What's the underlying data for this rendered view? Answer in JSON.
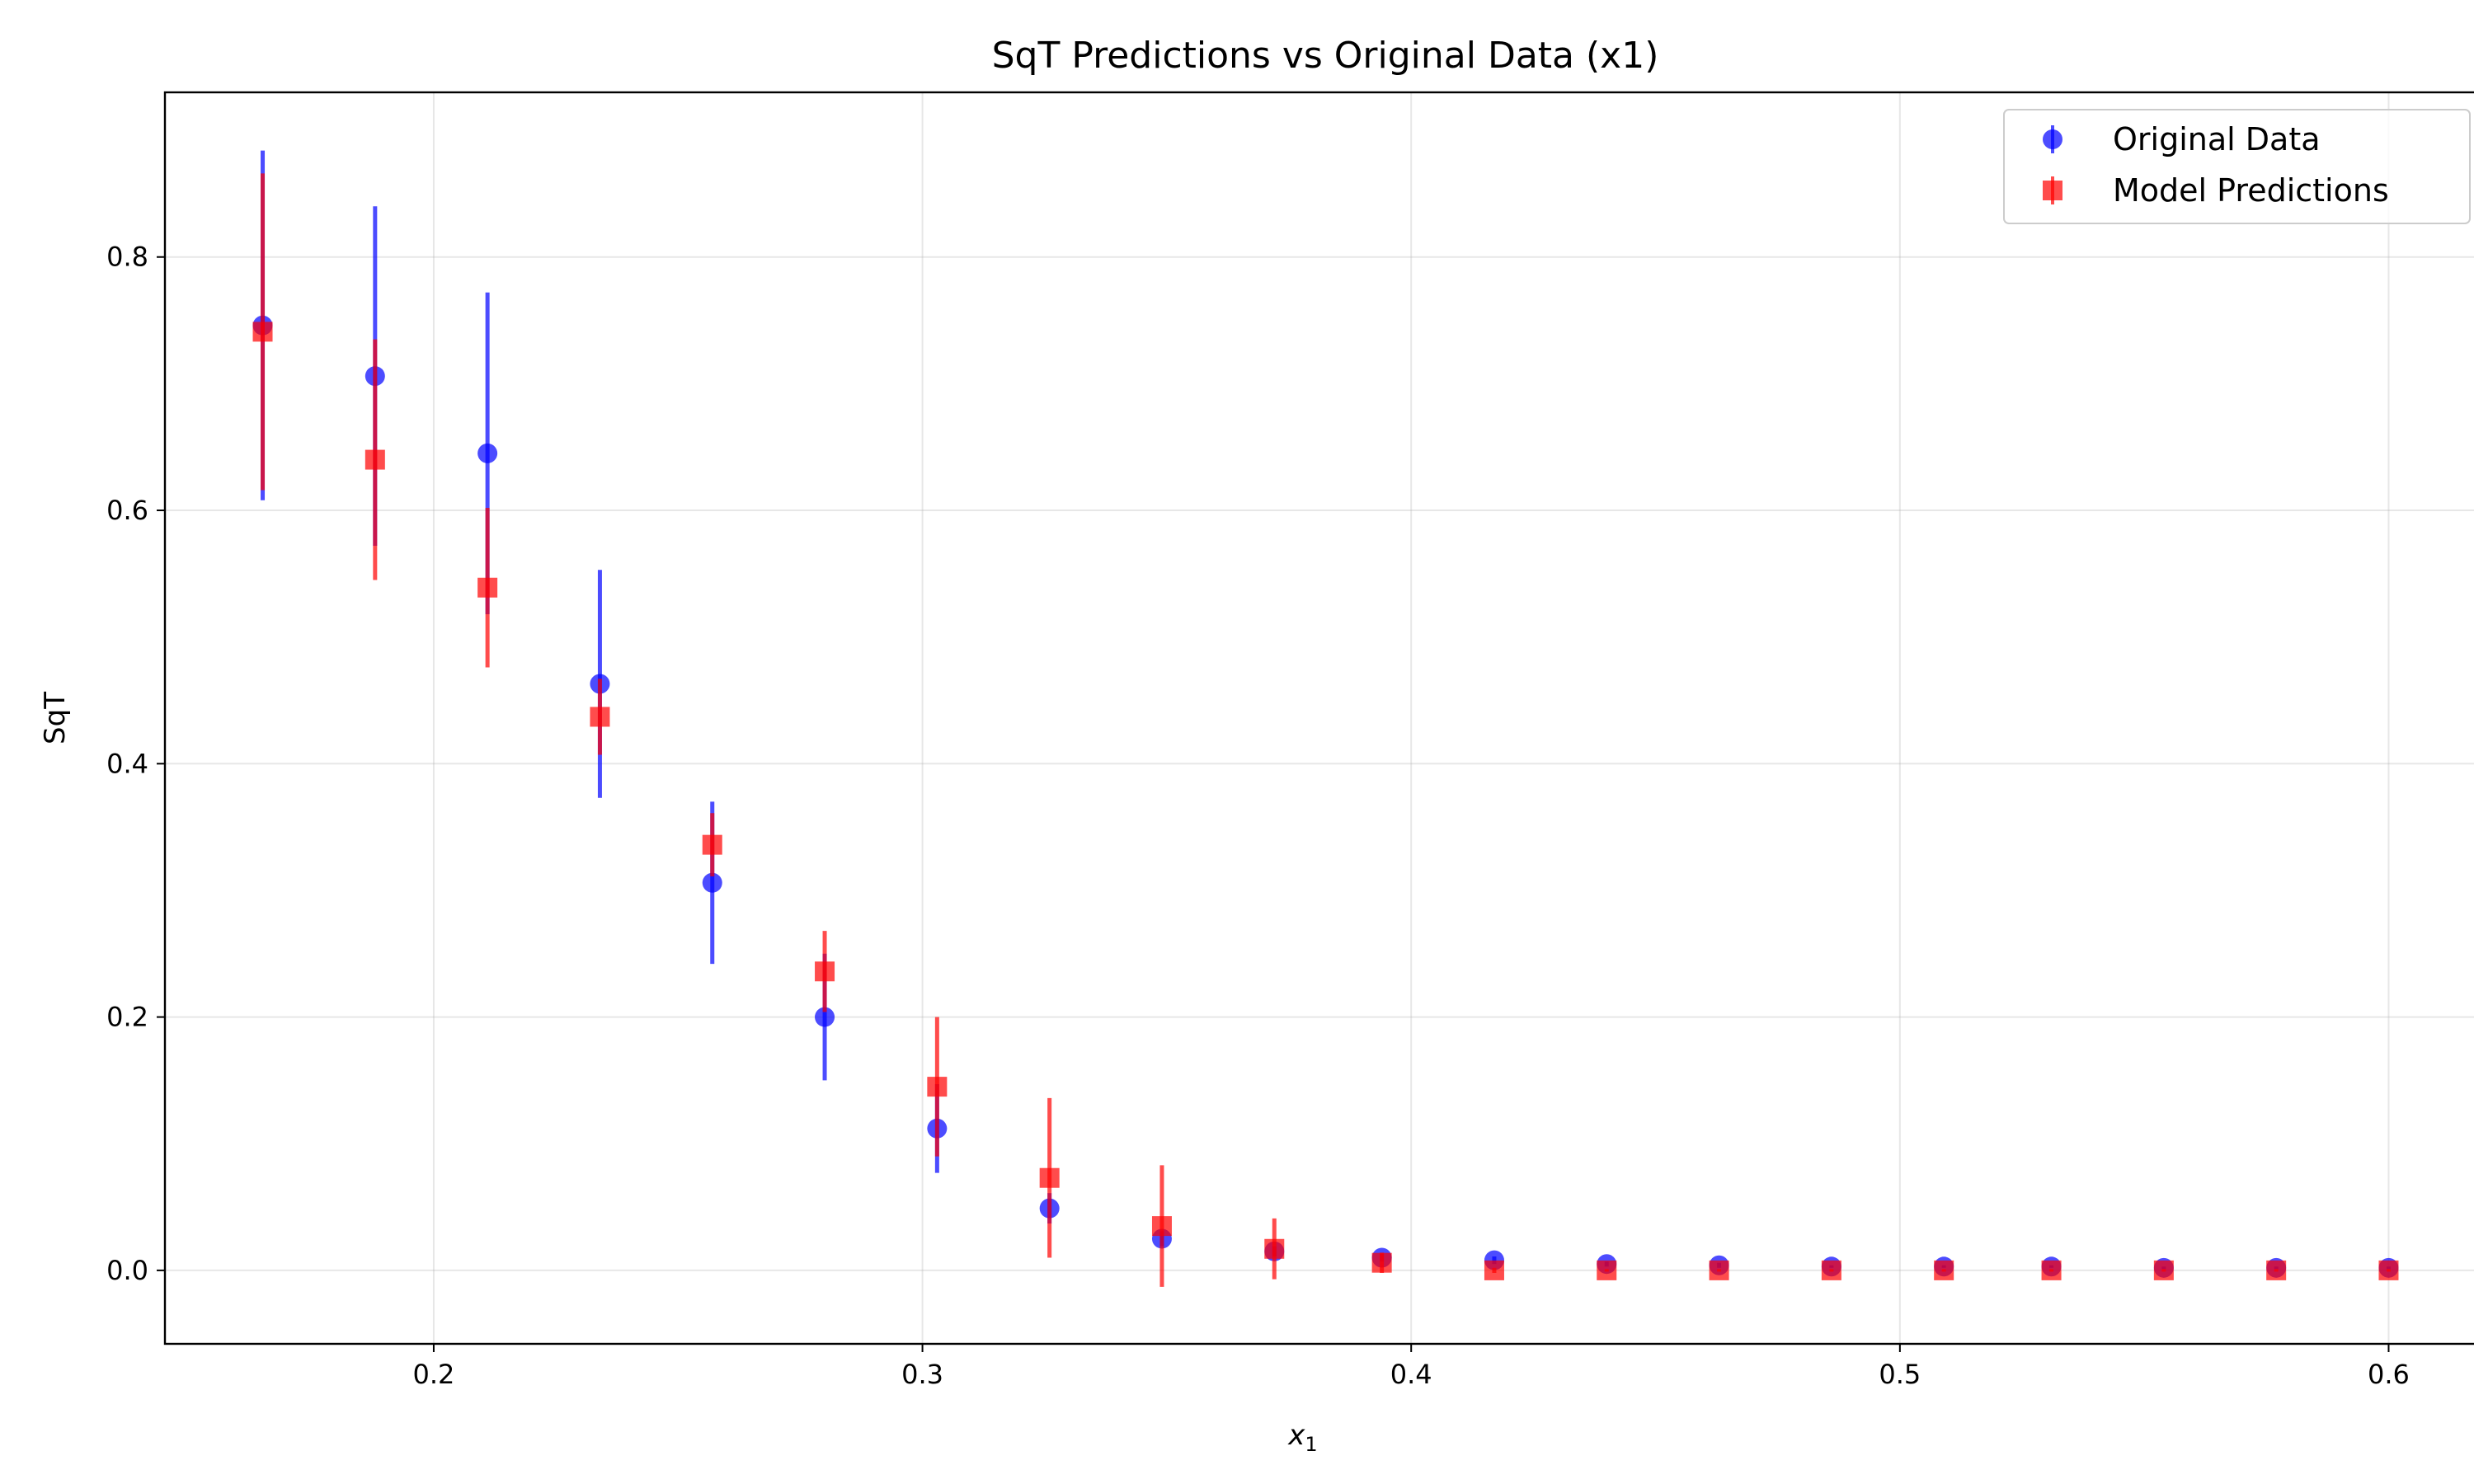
{
  "chart_data": {
    "type": "scatter",
    "title": "SqT Predictions vs Original Data (x1)",
    "xlabel_main": "x",
    "xlabel_sub": "1",
    "ylabel": "SqT",
    "xlim": [
      0.145,
      0.62
    ],
    "ylim": [
      -0.058,
      0.93
    ],
    "xticks": [
      "0.2",
      "0.3",
      "0.4",
      "0.5",
      "0.6"
    ],
    "yticks": [
      "0.0",
      "0.2",
      "0.4",
      "0.6",
      "0.8"
    ],
    "grid": true,
    "legend_position": "top-right",
    "x": [
      0.165,
      0.188,
      0.211,
      0.234,
      0.257,
      0.28,
      0.303,
      0.326,
      0.349,
      0.372,
      0.394,
      0.417,
      0.44,
      0.463,
      0.486,
      0.509,
      0.531,
      0.554,
      0.577,
      0.6
    ],
    "series": [
      {
        "name": "Original Data",
        "color": "#0000ff",
        "marker": "circle",
        "values": [
          0.746,
          0.706,
          0.645,
          0.463,
          0.306,
          0.2,
          0.112,
          0.049,
          0.025,
          0.015,
          0.01,
          0.008,
          0.005,
          0.004,
          0.003,
          0.003,
          0.003,
          0.002,
          0.002,
          0.002
        ],
        "errors": [
          0.138,
          0.134,
          0.127,
          0.09,
          0.064,
          0.05,
          0.035,
          0.012,
          0.006,
          0.004,
          0.003,
          0.003,
          0.002,
          0.002,
          0.001,
          0.001,
          0.001,
          0.001,
          0.001,
          0.001
        ]
      },
      {
        "name": "Model Predictions",
        "color": "#ff0000",
        "marker": "square",
        "values": [
          0.741,
          0.64,
          0.539,
          0.437,
          0.336,
          0.236,
          0.145,
          0.073,
          0.035,
          0.017,
          0.006,
          0.0,
          0.0,
          0.0,
          0.0,
          0.0,
          0.0,
          0.0,
          0.0,
          0.0
        ],
        "errors": [
          0.125,
          0.095,
          0.063,
          0.03,
          0.025,
          0.032,
          0.055,
          0.063,
          0.048,
          0.024,
          0.008,
          0.002,
          0.001,
          0.001,
          0.001,
          0.001,
          0.001,
          0.001,
          0.001,
          0.001
        ]
      }
    ]
  }
}
